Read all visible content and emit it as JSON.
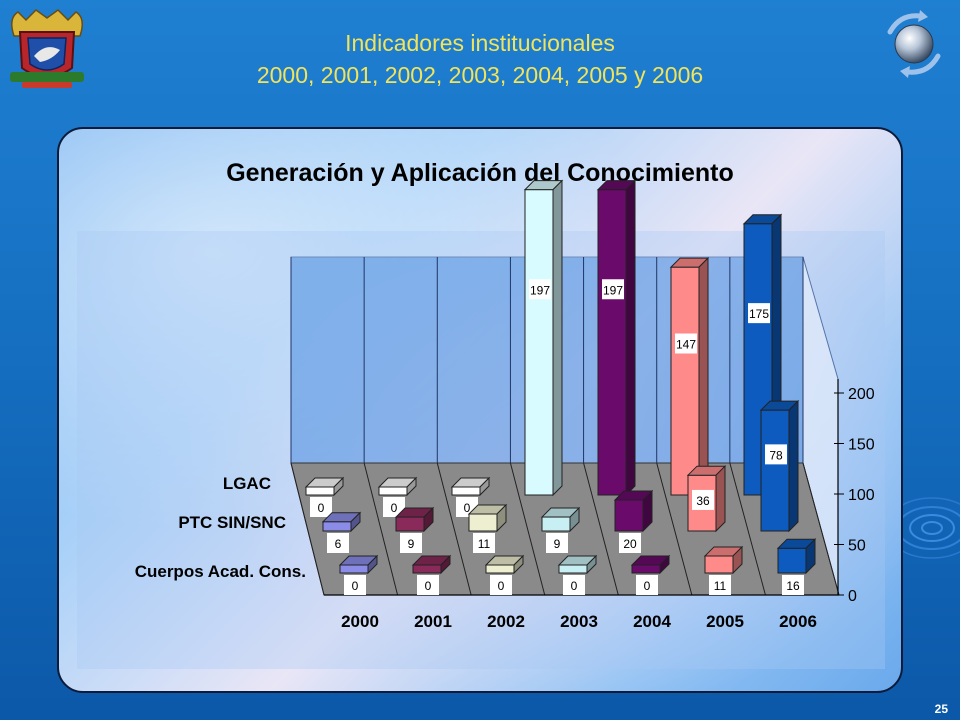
{
  "header": {
    "title_line1": "Indicadores institucionales",
    "title_line2": "2000, 2001, 2002, 2003, 2004, 2005 y 2006"
  },
  "footer": {
    "page_number": "25"
  },
  "colors": {
    "background": "#1670c2",
    "title_text": "#f2e45a",
    "series": {
      "LGAC": [
        "#ffffff",
        "#ffffff",
        "#ffffff",
        "#d8fbff",
        "#6a0a6a",
        "#ff8a8a",
        "#0e5bbf"
      ],
      "PTC SIN/SNC": [
        "#8a8ce8",
        "#8a2a5a",
        "#eeeed0",
        "#c8f0f4",
        "#6a0a6a",
        "#ff8a8a",
        "#0e5bbf"
      ],
      "Cuerpos Acad. Cons.": [
        "#8a8ce8",
        "#8a2a5a",
        "#eeeed0",
        "#c8f0f4",
        "#6a0a6a",
        "#ff8a8a",
        "#0e5bbf"
      ]
    }
  },
  "icons": {
    "crest": "university-crest-icon",
    "globe": "globe-icon"
  },
  "chart_data": {
    "type": "bar",
    "title": "Generación y Aplicación del Conocimiento",
    "categories": [
      "2000",
      "2001",
      "2002",
      "2003",
      "2004",
      "2005",
      "2006"
    ],
    "series": [
      {
        "name": "LGAC",
        "values": [
          0,
          0,
          0,
          197,
          197,
          147,
          175
        ]
      },
      {
        "name": "PTC SIN/SNC",
        "values": [
          6,
          9,
          11,
          9,
          20,
          36,
          78
        ]
      },
      {
        "name": "Cuerpos Acad. Cons.",
        "values": [
          0,
          0,
          0,
          0,
          0,
          11,
          16
        ]
      }
    ],
    "yticks": [
      "0",
      "50",
      "100",
      "150",
      "200"
    ],
    "ylim": [
      0,
      200
    ],
    "grid": true,
    "three_d": true
  }
}
